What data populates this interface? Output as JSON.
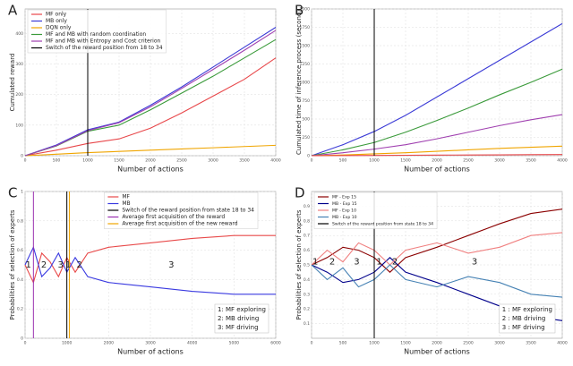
{
  "chart_data": [
    {
      "type": "line",
      "label": "A",
      "x_label": "Number of actions",
      "y_label": "Cumulated reward",
      "x": [
        0,
        500,
        1000,
        1500,
        2000,
        2500,
        3000,
        3500,
        4000
      ],
      "series": [
        {
          "name": "MF only",
          "color": "#e8474a",
          "values": [
            0,
            18,
            40,
            55,
            90,
            140,
            195,
            250,
            320
          ]
        },
        {
          "name": "MB only",
          "color": "#3b3bd6",
          "values": [
            0,
            35,
            85,
            110,
            165,
            225,
            290,
            355,
            420
          ]
        },
        {
          "name": "DQN only",
          "color": "#f0a500",
          "values": [
            0,
            5,
            10,
            14,
            18,
            22,
            26,
            30,
            34
          ]
        },
        {
          "name": "MF and  MB  with random coordination",
          "color": "#3a9a3a",
          "values": [
            0,
            32,
            80,
            100,
            150,
            205,
            260,
            320,
            380
          ]
        },
        {
          "name": "MF and  MB  with Entropy and Cost criterion",
          "color": "#a040b0",
          "values": [
            0,
            33,
            82,
            108,
            160,
            220,
            282,
            345,
            410
          ]
        }
      ],
      "vlines": [
        {
          "name": "Switch of the reward position from 18 to 34",
          "color": "#000000",
          "x": 1000
        }
      ],
      "xlim": [
        0,
        4000
      ],
      "xticks": [
        0,
        500,
        1000,
        1500,
        2000,
        2500,
        3000,
        3500,
        4000
      ],
      "ylim": [
        0,
        480
      ],
      "yticks": [
        0,
        100,
        200,
        300,
        400
      ],
      "grid": true,
      "legend": "upper left"
    },
    {
      "type": "line",
      "label": "B",
      "x_label": "Number of actions",
      "y_label": "Cumulated time of inference process (second)",
      "x": [
        0,
        500,
        1000,
        1500,
        2000,
        2500,
        3000,
        3500,
        4000
      ],
      "series": [
        {
          "color": "#3b3bd6",
          "values": [
            0,
            150,
            330,
            550,
            800,
            1050,
            1300,
            1550,
            1800
          ]
        },
        {
          "color": "#3a9a3a",
          "values": [
            0,
            80,
            180,
            320,
            480,
            650,
            830,
            1000,
            1180
          ]
        },
        {
          "color": "#a040b0",
          "values": [
            0,
            40,
            90,
            150,
            230,
            320,
            410,
            490,
            560
          ]
        },
        {
          "color": "#f0a500",
          "values": [
            0,
            10,
            25,
            40,
            60,
            80,
            100,
            115,
            130
          ]
        },
        {
          "color": "#e8474a",
          "values": [
            0,
            2,
            4,
            6,
            8,
            10,
            12,
            14,
            16
          ]
        }
      ],
      "vlines": [
        {
          "color": "#000000",
          "x": 1000
        }
      ],
      "xlim": [
        0,
        4000
      ],
      "xticks": [
        0,
        500,
        1000,
        1500,
        2000,
        2500,
        3000,
        3500,
        4000
      ],
      "ylim": [
        0,
        2000
      ],
      "yticks": [
        0,
        250,
        500,
        750,
        1000,
        1250,
        1500,
        1750,
        2000
      ],
      "grid": true
    },
    {
      "type": "line",
      "label": "C",
      "x_label": "Number of actions",
      "y_label": "Probabilities of selection of experts",
      "x": [
        0,
        200,
        400,
        600,
        800,
        1000,
        1200,
        1500,
        2000,
        3000,
        4000,
        5000,
        6000
      ],
      "series": [
        {
          "name": "MF",
          "color": "#e84a4a",
          "values": [
            0.5,
            0.38,
            0.58,
            0.52,
            0.42,
            0.55,
            0.45,
            0.58,
            0.62,
            0.65,
            0.68,
            0.7,
            0.7
          ]
        },
        {
          "name": "MB",
          "color": "#3a3ae0",
          "values": [
            0.5,
            0.62,
            0.42,
            0.48,
            0.58,
            0.45,
            0.55,
            0.42,
            0.38,
            0.35,
            0.32,
            0.3,
            0.3
          ]
        }
      ],
      "vlines": [
        {
          "name": "Switch of the reward position from state 18 to 34",
          "color": "#000000",
          "x": 1000
        },
        {
          "name": "Average first acquisition of the reward",
          "color": "#9a2fb0",
          "x": 200
        },
        {
          "name": "Average first acquisition of the new reward",
          "color": "#f0a500",
          "x": 1060
        }
      ],
      "annotations": [
        {
          "text": "1",
          "x": 80,
          "y": 0.5
        },
        {
          "text": "2",
          "x": 450,
          "y": 0.5
        },
        {
          "text": "3",
          "x": 850,
          "y": 0.5
        },
        {
          "text": "1",
          "x": 1030,
          "y": 0.5
        },
        {
          "text": "2",
          "x": 1300,
          "y": 0.5
        },
        {
          "text": "3",
          "x": 3500,
          "y": 0.5
        }
      ],
      "notes": [
        "1: MF exploring",
        "2: MB driving",
        "3: MF driving"
      ],
      "xlim": [
        0,
        6000
      ],
      "xticks": [
        0,
        1000,
        2000,
        3000,
        4000,
        5000,
        6000
      ],
      "ylim": [
        0,
        1
      ],
      "yticks": [
        0,
        0.2,
        0.4,
        0.6,
        0.8,
        1
      ],
      "grid": true,
      "legend": "upper right"
    },
    {
      "type": "line",
      "label": "D",
      "x_label": "Number of actions",
      "y_label": "Probabilities of selection of experts",
      "x": [
        0,
        250,
        500,
        750,
        1000,
        1250,
        1500,
        2000,
        2500,
        3000,
        3500,
        4000
      ],
      "series": [
        {
          "name": "MF - Exp 15",
          "color": "#8b0000",
          "values": [
            0.5,
            0.55,
            0.62,
            0.6,
            0.55,
            0.45,
            0.55,
            0.62,
            0.7,
            0.78,
            0.85,
            0.88
          ]
        },
        {
          "name": "MB - Exp 15",
          "color": "#00008b",
          "values": [
            0.5,
            0.45,
            0.38,
            0.4,
            0.45,
            0.55,
            0.45,
            0.38,
            0.3,
            0.22,
            0.15,
            0.12
          ]
        },
        {
          "name": "MF - Exp 10",
          "color": "#f08080",
          "values": [
            0.5,
            0.6,
            0.52,
            0.65,
            0.6,
            0.5,
            0.6,
            0.65,
            0.58,
            0.62,
            0.7,
            0.72
          ]
        },
        {
          "name": "MB - Exp 10",
          "color": "#4682b4",
          "values": [
            0.5,
            0.4,
            0.48,
            0.35,
            0.4,
            0.5,
            0.4,
            0.35,
            0.42,
            0.38,
            0.3,
            0.28
          ]
        }
      ],
      "vlines": [
        {
          "name": "Switch of the reward position from state 18 to 34",
          "color": "#000000",
          "x": 1000
        }
      ],
      "annotations": [
        {
          "text": "1",
          "x": 60,
          "y": 0.52
        },
        {
          "text": "2",
          "x": 330,
          "y": 0.52
        },
        {
          "text": "3",
          "x": 720,
          "y": 0.52
        },
        {
          "text": "1",
          "x": 1080,
          "y": 0.52
        },
        {
          "text": "2",
          "x": 1330,
          "y": 0.52
        },
        {
          "text": "3",
          "x": 2600,
          "y": 0.52
        }
      ],
      "notes": [
        "1 : MF exploring",
        "2 : MB driving",
        "3 : MF driving"
      ],
      "xlim": [
        0,
        4000
      ],
      "xticks": [
        0,
        500,
        1000,
        1500,
        2000,
        2500,
        3000,
        3500,
        4000
      ],
      "ylim": [
        0,
        1
      ],
      "yticks": [
        0.1,
        0.2,
        0.3,
        0.4,
        0.5,
        0.6,
        0.7,
        0.8,
        0.9
      ],
      "grid": true,
      "legend": "upper left"
    }
  ]
}
